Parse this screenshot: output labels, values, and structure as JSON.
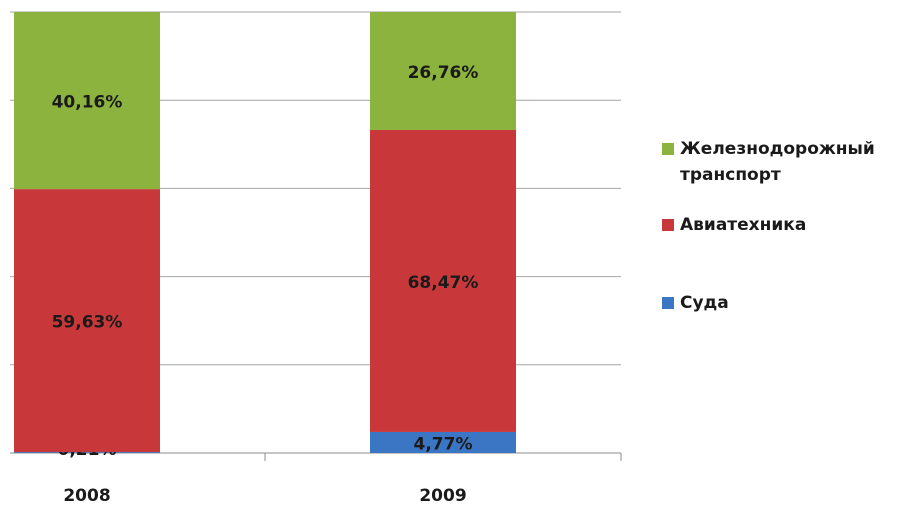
{
  "chart_data": {
    "type": "stacked_bar",
    "categories": [
      "2008",
      "2009"
    ],
    "series": [
      {
        "name": "Суда",
        "color": "#3a76c4",
        "values": [
          0.21,
          4.77
        ],
        "value_labels": [
          "0,21%",
          "4,77%"
        ]
      },
      {
        "name": "Авиатехника",
        "color": "#c8383a",
        "values": [
          59.63,
          68.47
        ],
        "value_labels": [
          "59,63%",
          "68,47%"
        ]
      },
      {
        "name": "Железнодорожный транспорт",
        "color": "#8db33f",
        "values": [
          40.16,
          26.76
        ],
        "value_labels": [
          "40,16%",
          "26,76%"
        ]
      }
    ],
    "ylim": [
      0,
      100
    ],
    "gridlines": [
      0,
      20,
      40,
      60,
      80,
      100
    ],
    "grid": true,
    "legend": "right"
  }
}
